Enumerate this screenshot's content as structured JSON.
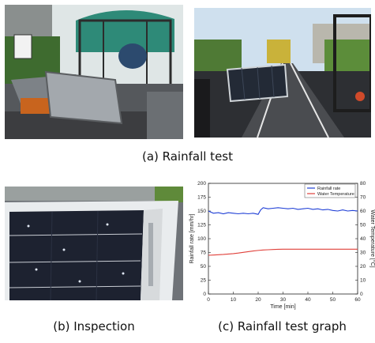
{
  "captions": {
    "rainfall_test": "(a) Rainfall test",
    "inspection": "(b) Inspection",
    "graph": "(c) Rainfall test graph"
  },
  "colors": {
    "rainfall_series": "#1f3fd6",
    "temperature_series": "#e0403a",
    "sky": "#cfe0ee",
    "foliage": "#4f7a35",
    "asphalt": "#3c3d40",
    "solar_panel": "#232a36"
  },
  "chart_data": {
    "type": "line",
    "xlabel": "Time [min]",
    "ylabel": "Rainfall rate [mm/hr]",
    "y2label": "Water Temperature [°C]",
    "xlim": [
      0,
      60
    ],
    "ylim": [
      0,
      200
    ],
    "y2lim": [
      0,
      80
    ],
    "xticks": [
      0,
      10,
      20,
      30,
      40,
      50,
      60
    ],
    "yticks": [
      0,
      25,
      50,
      75,
      100,
      125,
      150,
      175,
      200
    ],
    "y2ticks": [
      0,
      10,
      20,
      30,
      40,
      50,
      60,
      70,
      80
    ],
    "grid": false,
    "legend_position": "top-right",
    "series": [
      {
        "name": "Rainfall rate",
        "axis": "left",
        "color": "#1f3fd6",
        "x": [
          0,
          2,
          4,
          6,
          8,
          10,
          12,
          14,
          16,
          18,
          20,
          21,
          22,
          24,
          26,
          28,
          30,
          32,
          34,
          36,
          38,
          40,
          42,
          44,
          46,
          48,
          50,
          52,
          54,
          56,
          58,
          60
        ],
        "y": [
          150,
          146,
          147,
          145,
          147,
          146,
          145,
          146,
          145,
          146,
          144,
          152,
          156,
          154,
          155,
          156,
          155,
          154,
          155,
          153,
          154,
          155,
          153,
          154,
          152,
          153,
          151,
          150,
          152,
          150,
          151,
          150
        ]
      },
      {
        "name": "Water Temperature",
        "axis": "right",
        "color": "#e0403a",
        "x": [
          0,
          2,
          4,
          6,
          8,
          10,
          12,
          14,
          16,
          18,
          20,
          22,
          24,
          26,
          28,
          30,
          35,
          40,
          45,
          50,
          55,
          60
        ],
        "y": [
          28.0,
          28.2,
          28.4,
          28.6,
          28.9,
          29.2,
          29.6,
          30.1,
          30.6,
          31.1,
          31.5,
          31.8,
          32.0,
          32.2,
          32.3,
          32.4,
          32.4,
          32.4,
          32.4,
          32.4,
          32.4,
          32.4
        ]
      }
    ]
  }
}
